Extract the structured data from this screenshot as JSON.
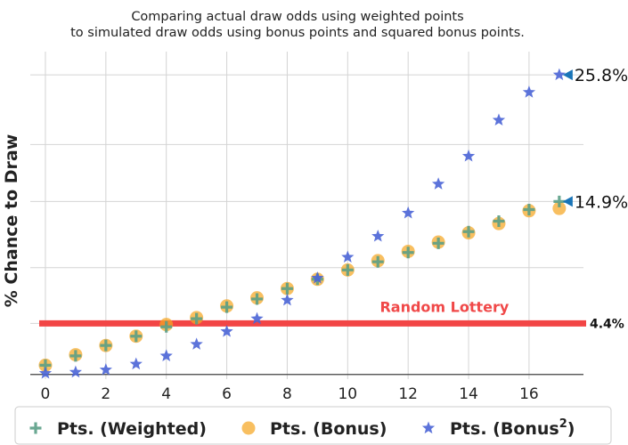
{
  "chart_data": {
    "type": "scatter",
    "title_line1": "Comparing actual draw odds using weighted points",
    "title_line2": "to simulated draw odds using bonus points and squared bonus points.",
    "ylabel": "% Chance to Draw",
    "xlabel": "",
    "xlim": [
      -0.5,
      17.8
    ],
    "ylim": [
      -0.4,
      27.8
    ],
    "x_ticks": [
      0,
      2,
      4,
      6,
      8,
      10,
      12,
      14,
      16
    ],
    "y_gridlines": [
      0,
      4.4,
      9.2,
      14.9,
      19.8,
      25.8
    ],
    "grid": true,
    "series": [
      {
        "name": "Pts. (Weighted)",
        "marker": "plus",
        "color": "#5a9e86",
        "x": [
          0,
          1,
          2,
          3,
          4,
          5,
          6,
          7,
          8,
          9,
          10,
          11,
          12,
          13,
          14,
          15,
          16,
          17
        ],
        "y": [
          0.8,
          1.6,
          2.5,
          3.3,
          4.1,
          4.8,
          5.8,
          6.5,
          7.4,
          8.2,
          9.0,
          9.7,
          10.5,
          11.3,
          12.3,
          13.2,
          14.2,
          14.9
        ]
      },
      {
        "name": "Pts. (Bonus)",
        "marker": "circle",
        "color": "#f5a623",
        "x": [
          0,
          1,
          2,
          3,
          4,
          5,
          6,
          7,
          8,
          9,
          10,
          11,
          12,
          13,
          14,
          15,
          16,
          17
        ],
        "y": [
          0.8,
          1.7,
          2.5,
          3.3,
          4.3,
          4.9,
          5.9,
          6.6,
          7.4,
          8.2,
          9.0,
          9.8,
          10.6,
          11.4,
          12.2,
          13.0,
          14.1,
          14.3
        ]
      },
      {
        "name": "Pts. (Bonus²)",
        "name_base": "Pts. (Bonus",
        "name_sup": "2",
        "name_end": ")",
        "marker": "star",
        "color": "#4a64d6",
        "x": [
          0,
          1,
          2,
          3,
          4,
          5,
          6,
          7,
          8,
          9,
          10,
          11,
          12,
          13,
          14,
          15,
          16,
          17
        ],
        "y": [
          0.1,
          0.2,
          0.4,
          0.9,
          1.6,
          2.6,
          3.7,
          4.8,
          6.4,
          8.3,
          10.1,
          11.9,
          13.9,
          16.4,
          18.8,
          21.9,
          24.3,
          25.8
        ]
      }
    ],
    "hline": {
      "y": 4.4,
      "label": "Random Lottery",
      "color": "#f24545",
      "value_label": "4.4%"
    },
    "end_annotations": [
      {
        "x": 17,
        "y": 25.8,
        "label": "25.8%",
        "color": "#1a75b8"
      },
      {
        "x": 17,
        "y": 14.9,
        "label": "14.9%",
        "color": "#1a75b8"
      }
    ],
    "legend_placement": "bottom"
  }
}
